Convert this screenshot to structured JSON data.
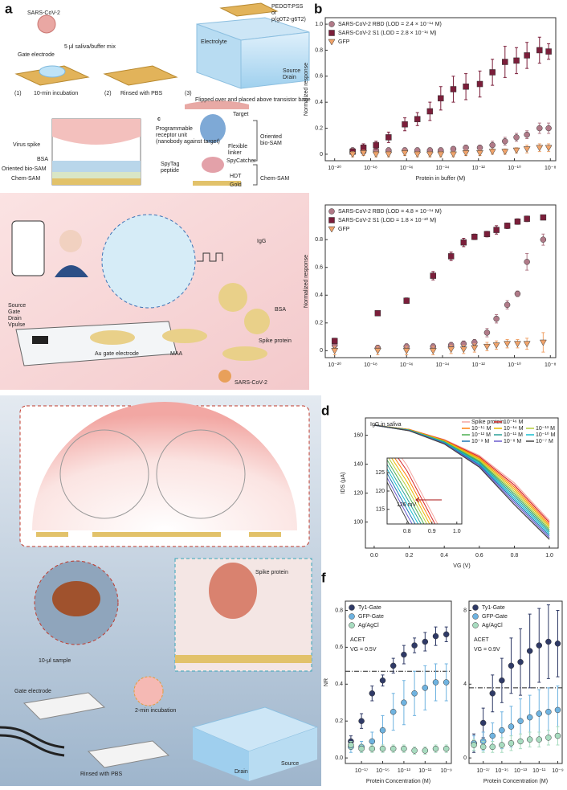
{
  "panel_labels": [
    "a",
    "b",
    "c",
    "d",
    "e",
    "f"
  ],
  "figure_a": {
    "labels": [
      "SARS-CoV-2",
      "Gate electrode",
      "5 μl saliva/buffer mix",
      "(1)",
      "10-min incubation",
      "(2)",
      "Rinsed with PBS",
      "(3)",
      "Flipped over and placed above transistor base",
      "PEDOT:PSS",
      "or",
      "p(g0T2-g6T2)",
      "Electrolyte",
      "Source",
      "Drain",
      "Virus spike",
      "BSA",
      "Oriented bio-SAM",
      "Chem-SAM",
      "c",
      "Target",
      "Programmable",
      "receptor unit",
      "(nanobody against target)",
      "Flexible",
      "linker",
      "SpyCatcher",
      "SpyTag",
      "peptide",
      "Oriented",
      "bio-SAM",
      "HDT",
      "Gold",
      "Chem-SAM"
    ]
  },
  "figure_c": {
    "labels": [
      "Source",
      "Gate",
      "Drain",
      "Vpulse",
      "IgG",
      "BSA",
      "Spike protein",
      "MAA",
      "Au gate electrode",
      "SARS-CoV-2"
    ]
  },
  "figure_e": {
    "labels": [
      "10-μl sample",
      "Gate electrode",
      "2-min incubation",
      "Rinsed with PBS",
      "Spike protein",
      "Drain",
      "Source"
    ]
  },
  "chart_data": [
    {
      "type": "scatter",
      "y_label": "Normalized response",
      "x_label": "Protein in buffer (M)",
      "xlog": true,
      "xlim": [
        3e-21,
        2e-08
      ],
      "ylim": [
        -0.05,
        1.05
      ],
      "xticks": [
        {
          "value": 1e-20,
          "label": "10⁻²⁰"
        },
        {
          "value": 1e-18,
          "label": "10⁻¹⁸"
        },
        {
          "value": 1e-16,
          "label": "10⁻¹⁶"
        },
        {
          "value": 1e-14,
          "label": "10⁻¹⁴"
        },
        {
          "value": 1e-12,
          "label": "10⁻¹²"
        },
        {
          "value": 1e-10,
          "label": "10⁻¹⁰"
        },
        {
          "value": 1e-08,
          "label": "10⁻⁸"
        }
      ],
      "yticks": [
        0,
        0.2,
        0.4,
        0.6,
        0.8,
        {
          "value": 1,
          "label": "1.0"
        }
      ],
      "x": [
        1e-19,
        4e-19,
        2e-18,
        1e-17,
        8e-17,
        4e-16,
        2e-15,
        8e-15,
        4e-14,
        2e-13,
        1.2e-12,
        6e-12,
        3e-11,
        1.3e-10,
        5e-10,
        2.5e-09,
        8e-09
      ],
      "series": [
        {
          "name": "SARS-CoV-2 RBD (LOD = 2.4 × 10⁻¹⁴ M)",
          "color": "#b07a88",
          "marker": "circle",
          "values": [
            0.03,
            0.02,
            0.03,
            0.03,
            0.03,
            0.03,
            0.03,
            0.03,
            0.04,
            0.05,
            0.05,
            0.07,
            0.1,
            0.13,
            0.15,
            0.2,
            0.2
          ],
          "errors": [
            0.02,
            0.02,
            0.02,
            0.02,
            0.02,
            0.02,
            0.02,
            0.02,
            0.02,
            0.02,
            0.02,
            0.03,
            0.03,
            0.03,
            0.03,
            0.04,
            0.04
          ]
        },
        {
          "name": "SARS-CoV-2 S1 (LOD = 2.8 × 10⁻¹⁶ M)",
          "color": "#7b1e3a",
          "marker": "square",
          "values": [
            0.02,
            0.05,
            0.07,
            0.13,
            0.23,
            0.27,
            0.33,
            0.43,
            0.5,
            0.52,
            0.54,
            0.63,
            0.71,
            0.72,
            0.76,
            0.8,
            0.79
          ],
          "errors": [
            0.02,
            0.03,
            0.03,
            0.04,
            0.05,
            0.05,
            0.07,
            0.09,
            0.1,
            0.1,
            0.1,
            0.1,
            0.12,
            0.1,
            0.1,
            0.1,
            0.06
          ]
        },
        {
          "name": "GFP",
          "color": "#f0a36a",
          "marker": "triangle",
          "values": [
            0,
            0.01,
            0,
            0,
            0.01,
            0,
            0,
            0,
            0,
            0.01,
            0.01,
            0.02,
            0.02,
            0.03,
            0.04,
            0.05,
            0.05
          ],
          "errors": [
            0.02,
            0.02,
            0.02,
            0.02,
            0.02,
            0.02,
            0.02,
            0.02,
            0.02,
            0.02,
            0.02,
            0.02,
            0.02,
            0.02,
            0.03,
            0.03,
            0.03
          ]
        }
      ]
    },
    {
      "type": "scatter",
      "y_label": "Normalized response",
      "xlog": true,
      "xlim": [
        3e-21,
        2e-08
      ],
      "ylim": [
        -0.05,
        1.05
      ],
      "xticks": [
        {
          "value": 1e-20,
          "label": "10⁻²⁰"
        },
        {
          "value": 1e-18,
          "label": "10⁻¹⁸"
        },
        {
          "value": 1e-16,
          "label": "10⁻¹⁶"
        },
        {
          "value": 1e-14,
          "label": "10⁻¹⁴"
        },
        {
          "value": 1e-12,
          "label": "10⁻¹²"
        },
        {
          "value": 1e-10,
          "label": "10⁻¹⁰"
        },
        {
          "value": 1e-08,
          "label": "10⁻⁸"
        }
      ],
      "yticks": [
        0,
        0.2,
        0.4,
        0.6,
        0.8
      ],
      "x": [
        1e-20,
        2.5e-18,
        1e-16,
        3e-15,
        3e-14,
        1.5e-13,
        6e-13,
        3e-12,
        1e-11,
        4e-11,
        1.5e-10,
        5e-10,
        4e-09
      ],
      "series": [
        {
          "name": "SARS-CoV-2 RBD (LOD = 4.8 × 10⁻¹⁴ M)",
          "color": "#b07a88",
          "marker": "circle",
          "values": [
            0.04,
            0.02,
            0.03,
            0.03,
            0.04,
            0.05,
            0.06,
            0.13,
            0.23,
            0.33,
            0.41,
            0.64,
            0.8
          ],
          "errors": [
            0.02,
            0.02,
            0.02,
            0.02,
            0.02,
            0.02,
            0.02,
            0.03,
            0.03,
            0.03,
            0.02,
            0.06,
            0.04
          ]
        },
        {
          "name": "SARS-CoV-2 S1 (LOD = 1.8 × 10⁻²⁰ M)",
          "color": "#7b1e3a",
          "marker": "square",
          "values": [
            0.07,
            0.27,
            0.36,
            0.54,
            0.68,
            0.78,
            0.82,
            0.84,
            0.87,
            0.9,
            0.93,
            0.95,
            0.96
          ],
          "errors": [
            0.02,
            0.01,
            0.02,
            0.03,
            0.03,
            0.03,
            0.02,
            0.02,
            0.03,
            0.02,
            0.02,
            0.02,
            0.01
          ]
        },
        {
          "name": "GFP",
          "color": "#f0a36a",
          "marker": "triangle",
          "values": [
            0,
            0,
            0,
            0,
            0.01,
            0.01,
            0.02,
            0.03,
            0.04,
            0.05,
            0.05,
            0.05,
            0.06
          ],
          "errors": [
            0.03,
            0.03,
            0.03,
            0.03,
            0.03,
            0.03,
            0.03,
            0.03,
            0.03,
            0.03,
            0.03,
            0.04,
            0.07
          ]
        }
      ]
    },
    {
      "type": "line",
      "y_label": "IDS (μA)",
      "x_label": "VG (V)",
      "annotation": "IgG in saliva",
      "xlim": [
        -0.05,
        1.05
      ],
      "ylim": [
        82,
        172
      ],
      "xticks": [
        {
          "value": 0,
          "label": "0.0"
        },
        0.2,
        0.4,
        0.6,
        0.8,
        {
          "value": 1,
          "label": "1.0"
        }
      ],
      "yticks": [
        100,
        120,
        140,
        160
      ],
      "x": [
        0,
        0.2,
        0.4,
        0.6,
        0.8,
        1
      ],
      "series": [
        {
          "name": "Spike protein",
          "color": "#f4a6a0",
          "values": [
            167,
            164,
            157,
            146,
            127,
            101
          ]
        },
        {
          "name": "10⁻¹⁶ M",
          "color": "#d62728",
          "values": [
            167,
            164,
            156.7,
            145.2,
            125.5,
            99.7
          ]
        },
        {
          "name": "10⁻¹⁵ M",
          "color": "#ff7f0e",
          "values": [
            167,
            164,
            156.4,
            144.4,
            124,
            98.4
          ]
        },
        {
          "name": "10⁻¹⁴ M",
          "color": "#e6b800",
          "values": [
            167,
            163.8,
            156.1,
            143.6,
            122.5,
            97.1
          ]
        },
        {
          "name": "10⁻¹³ M",
          "color": "#b5cf3a",
          "values": [
            167,
            163.7,
            155.8,
            142.8,
            121,
            95.8
          ]
        },
        {
          "name": "10⁻¹² M",
          "color": "#4caf50",
          "values": [
            167,
            163.6,
            155.5,
            142,
            119.5,
            94.5
          ]
        },
        {
          "name": "10⁻¹¹ M",
          "color": "#2aa198",
          "values": [
            167,
            163.5,
            155.2,
            141.2,
            118,
            93.2
          ]
        },
        {
          "name": "10⁻¹⁰ M",
          "color": "#17becf",
          "values": [
            167,
            163.4,
            154.9,
            140.4,
            116.5,
            91.9
          ]
        },
        {
          "name": "10⁻⁹ M",
          "color": "#1f77b4",
          "values": [
            167,
            163.3,
            154.6,
            139.6,
            115,
            90.6
          ]
        },
        {
          "name": "10⁻⁸ M",
          "color": "#6a5acd",
          "values": [
            167,
            163.2,
            154.3,
            138.8,
            113.5,
            89.3
          ]
        },
        {
          "name": "10⁻⁷ M",
          "color": "#444444",
          "values": [
            167,
            163.1,
            154,
            138,
            112,
            88
          ]
        }
      ],
      "inset": {
        "xlim": [
          0.72,
          1.02
        ],
        "ylim": [
          111,
          129
        ],
        "xticks": [
          0.8,
          0.9,
          {
            "value": 1,
            "label": "1.0"
          }
        ],
        "yticks": [
          115,
          120,
          125
        ],
        "annotation": "126 mV"
      }
    },
    {
      "type": "scatter",
      "y_label": "NR",
      "x_label": "Protein Concentration (M)",
      "xlog": true,
      "xlim": [
        3e-19,
        3e-09
      ],
      "ylim": [
        -0.03,
        0.85
      ],
      "threshold": 0.47,
      "annotations": [
        "ACET",
        "VG = 0.5V"
      ],
      "xticks": [
        {
          "value": 1e-17,
          "label": "10⁻¹⁷"
        },
        {
          "value": 1e-15,
          "label": "10⁻¹⁵"
        },
        {
          "value": 1e-13,
          "label": "10⁻¹³"
        },
        {
          "value": 1e-11,
          "label": "10⁻¹¹"
        },
        {
          "value": 1e-09,
          "label": "10⁻⁹"
        }
      ],
      "yticks": [
        {
          "value": 0,
          "label": "0.0"
        },
        0.2,
        0.4,
        0.6,
        0.8
      ],
      "x": [
        1e-18,
        1e-17,
        1e-16,
        1e-15,
        1e-14,
        1e-13,
        1e-12,
        1e-11,
        1e-10,
        1e-09
      ],
      "series": [
        {
          "name": "Ty1-Gate",
          "color": "#2f3a66",
          "marker": "circle",
          "values": [
            0.09,
            0.2,
            0.35,
            0.42,
            0.5,
            0.56,
            0.61,
            0.63,
            0.66,
            0.67
          ],
          "errors": [
            0.03,
            0.04,
            0.04,
            0.03,
            0.04,
            0.05,
            0.04,
            0.05,
            0.05,
            0.04
          ]
        },
        {
          "name": "GFP-Gate",
          "color": "#6fb3e0",
          "marker": "circle",
          "values": [
            0.06,
            0.06,
            0.09,
            0.15,
            0.25,
            0.3,
            0.35,
            0.38,
            0.41,
            0.41
          ],
          "errors": [
            0.03,
            0.03,
            0.05,
            0.08,
            0.1,
            0.12,
            0.12,
            0.12,
            0.1,
            0.1
          ]
        },
        {
          "name": "Ag/AgCl",
          "color": "#a8dcc0",
          "marker": "circle",
          "values": [
            0.07,
            0.05,
            0.05,
            0.05,
            0.05,
            0.05,
            0.04,
            0.04,
            0.05,
            0.05
          ],
          "errors": [
            0.02,
            0.02,
            0.02,
            0.02,
            0.02,
            0.02,
            0.02,
            0.02,
            0.02,
            0.02
          ]
        }
      ]
    },
    {
      "type": "scatter",
      "x_label": "Protein Concentration (M)",
      "xlog": true,
      "xlim": [
        3e-19,
        3e-09
      ],
      "ylim": [
        -0.3,
        8.5
      ],
      "threshold": 3.8,
      "annotations": [
        "ACET",
        "VG = 0.9V"
      ],
      "xticks": [
        {
          "value": 1e-17,
          "label": "10⁻¹⁷"
        },
        {
          "value": 1e-15,
          "label": "10⁻¹⁵"
        },
        {
          "value": 1e-13,
          "label": "10⁻¹³"
        },
        {
          "value": 1e-11,
          "label": "10⁻¹¹"
        },
        {
          "value": 1e-09,
          "label": "10⁻⁹"
        }
      ],
      "yticks": [
        0,
        4,
        8
      ],
      "x": [
        1e-18,
        1e-17,
        1e-16,
        1e-15,
        1e-14,
        1e-13,
        1e-12,
        1e-11,
        1e-10,
        1e-09
      ],
      "series": [
        {
          "name": "Ty1-Gate",
          "color": "#2f3a66",
          "marker": "circle",
          "values": [
            0.8,
            1.9,
            3.5,
            4.2,
            5,
            5.2,
            5.8,
            6.1,
            6.3,
            6.2
          ],
          "errors": [
            0.5,
            0.8,
            1,
            1.2,
            1.5,
            1.8,
            2,
            2,
            2,
            1.8
          ]
        },
        {
          "name": "GFP-Gate",
          "color": "#6fb3e0",
          "marker": "circle",
          "values": [
            0.8,
            0.9,
            1.2,
            1.5,
            1.7,
            2,
            2.2,
            2.4,
            2.5,
            2.6
          ],
          "errors": [
            0.4,
            0.5,
            0.7,
            1,
            1.1,
            1.2,
            1.2,
            1.3,
            1.3,
            1.3
          ]
        },
        {
          "name": "Ag/AgCl",
          "color": "#a8dcc0",
          "marker": "circle",
          "values": [
            0.7,
            0.6,
            0.6,
            0.7,
            0.8,
            0.9,
            1,
            1,
            1.1,
            1.2
          ],
          "errors": [
            0.3,
            0.3,
            0.3,
            0.4,
            0.4,
            0.4,
            0.4,
            0.4,
            0.4,
            0.5
          ]
        }
      ]
    }
  ]
}
